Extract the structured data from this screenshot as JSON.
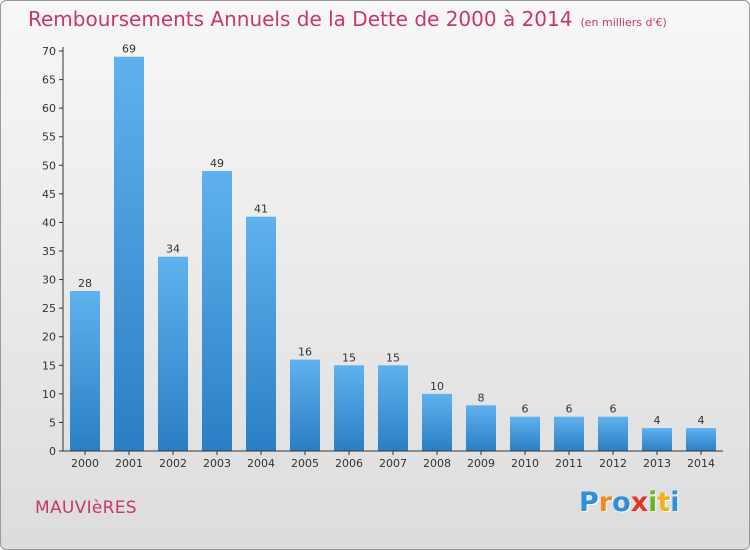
{
  "title": "Remboursements Annuels de la Dette de 2000 à 2014",
  "unit_note": "(en milliers d'€)",
  "commune": "MAUVIèRES",
  "brand": {
    "letters": [
      "P",
      "r",
      "o",
      "x",
      "i",
      "t",
      "i"
    ],
    "colors": [
      "#2f8fd8",
      "#f28a1c",
      "#2f8fd8",
      "#e2362a",
      "#6ab42a",
      "#f2b01c",
      "#2f8fd8"
    ]
  },
  "colors": {
    "bar_top": "#5fb2ee",
    "bar_bottom": "#2a7fc4",
    "axis": "#333333",
    "accent": "#c8366e"
  },
  "chart_data": {
    "type": "bar",
    "categories": [
      "2000",
      "2001",
      "2002",
      "2003",
      "2004",
      "2005",
      "2006",
      "2007",
      "2008",
      "2009",
      "2010",
      "2011",
      "2012",
      "2013",
      "2014"
    ],
    "values": [
      28,
      69,
      34,
      49,
      41,
      16,
      15,
      15,
      10,
      8,
      6,
      6,
      6,
      4,
      4
    ],
    "yticks": [
      0,
      5,
      10,
      15,
      20,
      25,
      30,
      35,
      40,
      45,
      50,
      55,
      60,
      65,
      70
    ],
    "ylim": [
      0,
      70
    ],
    "title": "Remboursements Annuels de la Dette de 2000 à 2014",
    "xlabel": "",
    "ylabel": "",
    "grid": false
  }
}
